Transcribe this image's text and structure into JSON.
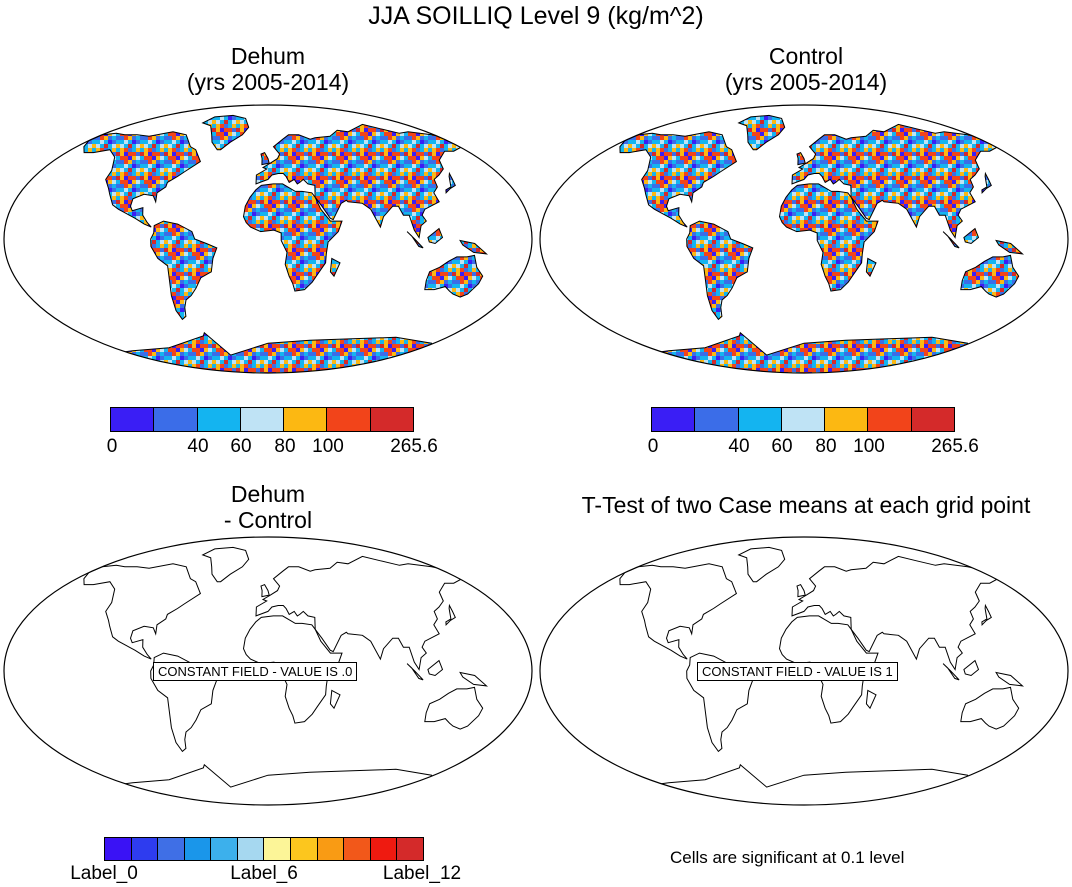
{
  "title": "JJA SOILLIQ Level 9 (kg/m^2)",
  "panels": [
    {
      "title_line1": "Dehum",
      "title_line2": "(yrs 2005-2014)"
    },
    {
      "title_line1": "Control",
      "title_line2": "(yrs 2005-2014)"
    },
    {
      "title_line1": "Dehum",
      "title_line2": "- Control",
      "message": "CONSTANT FIELD - VALUE IS .0"
    },
    {
      "title_line1": "T-Test of two Case means at each grid point",
      "message": "CONSTANT FIELD - VALUE IS 1"
    }
  ],
  "colorbar_top": {
    "colors": [
      "#3a1ef5",
      "#3b6de8",
      "#14b4f0",
      "#bfe3f5",
      "#fcb812",
      "#f2441a",
      "#d42a2a"
    ],
    "tick_labels": [
      "0",
      "40",
      "60",
      "80",
      "100",
      "265.6"
    ]
  },
  "colorbar_bottom": {
    "colors": [
      "#3a12f5",
      "#2e3cef",
      "#3f6fe6",
      "#1a96ea",
      "#3cb0ec",
      "#a6d8f0",
      "#fcf598",
      "#fcc61e",
      "#f99b14",
      "#f2581a",
      "#ef1a10",
      "#d42a2a"
    ],
    "tick_labels": [
      "Label_0",
      "Label_6",
      "Label_12"
    ]
  },
  "footnote": "Cells are significant at 0.1 level",
  "icons": [
    "world-map-robinson"
  ]
}
